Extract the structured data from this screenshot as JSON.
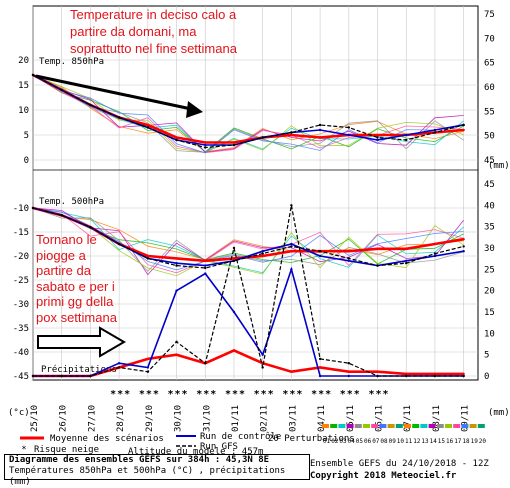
{
  "annotations": {
    "top": [
      "Temperature in deciso calo a",
      "partire da domani, ma",
      "soprattutto nel fine settimana"
    ],
    "left": [
      "Tornano le",
      "piogge a",
      "partire da",
      "sabato e per i",
      "primi gg della",
      "pox settimana"
    ]
  },
  "labels": {
    "temp850": "Temp. 850hPa",
    "temp500": "Temp. 500hPa",
    "precip": "Précipitations",
    "unit_c": "(°c)",
    "unit_mm": "(mm)",
    "unit_mm2": "(mm)",
    "snow_risk": "Risque neige",
    "altitude": "Altitude du modele : 457m",
    "copyright": "Copyright 2018 Meteociel.fr",
    "ensemble_date": "Ensemble GEFS du 24/10/2018 - 12Z",
    "perturbations_title": "20 Perturbations"
  },
  "legend": {
    "mean": "Moyenne des scénarios",
    "control": "Run de contrôle",
    "gfs": "Run GFS"
  },
  "footer": {
    "line1": "Diagramme des ensembles GEFS sur 384h : 45,3N 8E",
    "line2": "Températures 850hPa et 500hPa (°C) , précipitations (mm)"
  },
  "perturbation_labels": [
    "01",
    "02",
    "03",
    "04",
    "05",
    "06",
    "07",
    "08",
    "09",
    "10",
    "11",
    "12",
    "13",
    "14",
    "15",
    "16",
    "17",
    "18",
    "19",
    "20"
  ],
  "snow_marker": "*",
  "colors": {
    "mean": "#ff0000",
    "control": "#0000c8",
    "gfs": "#000000",
    "annotation": "#e0141b",
    "grid": "#c8c8c8",
    "snow": "#3c96ff"
  },
  "chart_data": [
    {
      "type": "line",
      "title": "Temp. 850hPa",
      "x": [
        "25/10",
        "26/10",
        "27/10",
        "28/10",
        "29/10",
        "30/10",
        "31/10",
        "01/11",
        "02/11",
        "03/11",
        "04/11",
        "05/11",
        "06/11",
        "07/11",
        "08/11",
        "09/11"
      ],
      "ylim": [
        0,
        20
      ],
      "y_ticks_left": [
        0,
        5,
        10,
        15,
        20
      ],
      "y_ticks_right": [
        45,
        50,
        55,
        60,
        65,
        70,
        75
      ],
      "grid": true,
      "series": [
        {
          "name": "Moyenne des scénarios",
          "values": [
            17,
            14,
            11,
            8.5,
            7,
            4.5,
            3.5,
            3.5,
            4.5,
            5,
            4.5,
            5,
            5,
            5,
            5.5,
            6
          ]
        },
        {
          "name": "Run de contrôle",
          "values": [
            17,
            14,
            11,
            8.5,
            6.5,
            4,
            3,
            3,
            4.5,
            5.5,
            6,
            5,
            4,
            5,
            6,
            7
          ]
        },
        {
          "name": "Run GFS",
          "values": [
            17,
            14,
            11,
            8.5,
            6.5,
            4,
            2.5,
            3,
            4.5,
            5.5,
            7,
            6.5,
            4.5,
            4,
            5.5,
            7
          ]
        }
      ]
    },
    {
      "type": "line",
      "title": "Temp. 500hPa",
      "x": [
        "25/10",
        "26/10",
        "27/10",
        "28/10",
        "29/10",
        "30/10",
        "31/10",
        "01/11",
        "02/11",
        "03/11",
        "04/11",
        "05/11",
        "06/11",
        "07/11",
        "08/11",
        "09/11"
      ],
      "ylim": [
        -45,
        -10
      ],
      "y_ticks_left": [
        -45,
        -40,
        -35,
        -30,
        -25,
        -20,
        -15,
        -10
      ],
      "grid": true,
      "series": [
        {
          "name": "Moyenne des scénarios",
          "values": [
            -10,
            -11.5,
            -14,
            -17.5,
            -20,
            -20.5,
            -21,
            -20.5,
            -20,
            -19,
            -19,
            -19,
            -18.5,
            -18.5,
            -17.5,
            -16.5
          ]
        },
        {
          "name": "Run de contrôle",
          "values": [
            -10,
            -11.5,
            -14,
            -17.5,
            -20.5,
            -21.5,
            -22,
            -21,
            -19,
            -17.5,
            -20,
            -21,
            -22,
            -21,
            -20,
            -19
          ]
        },
        {
          "name": "Run GFS",
          "values": [
            -10,
            -11.5,
            -14,
            -17.5,
            -20.5,
            -22,
            -22.5,
            -21,
            -19.5,
            -18,
            -19,
            -20.5,
            -22,
            -21.5,
            -19.5,
            -18
          ]
        }
      ]
    },
    {
      "type": "line",
      "title": "Précipitations",
      "x": [
        "25/10",
        "26/10",
        "27/10",
        "28/10",
        "29/10",
        "30/10",
        "31/10",
        "01/11",
        "02/11",
        "03/11",
        "04/11",
        "05/11",
        "06/11",
        "07/11",
        "08/11",
        "09/11"
      ],
      "ylim": [
        0,
        45
      ],
      "y_ticks_right": [
        0,
        5,
        10,
        15,
        20,
        25,
        30,
        35,
        40,
        45
      ],
      "grid": true,
      "series": [
        {
          "name": "Moyenne des scénarios",
          "values": [
            0,
            0,
            0,
            2,
            4,
            5,
            3,
            6,
            3,
            1,
            2,
            1,
            1,
            0.5,
            0.5,
            0.5
          ]
        },
        {
          "name": "Run de contrôle",
          "values": [
            0,
            0,
            0,
            3,
            2,
            20,
            24,
            15,
            5,
            25,
            0,
            0,
            0,
            0,
            0,
            0
          ]
        },
        {
          "name": "Run GFS",
          "values": [
            0,
            0,
            0,
            2,
            1,
            8,
            3,
            30,
            2,
            40,
            4,
            3,
            0,
            0,
            0,
            0
          ]
        }
      ]
    }
  ]
}
